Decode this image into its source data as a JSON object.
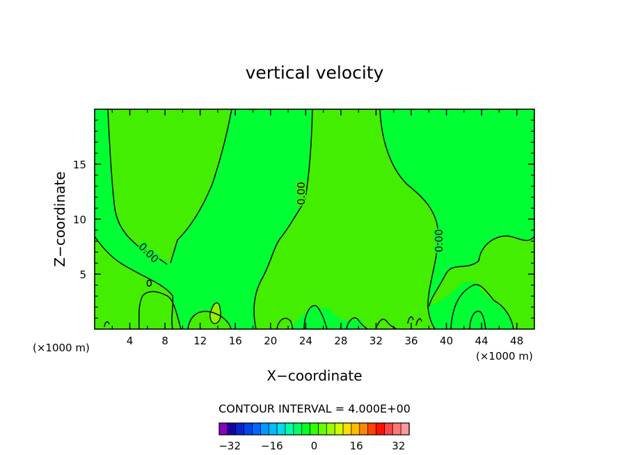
{
  "chart_data": {
    "type": "contour",
    "title": "vertical velocity",
    "xlabel": "X−coordinate",
    "ylabel": "Z−coordinate",
    "x_scale_note_left": "(×1000 m)",
    "x_scale_note_right": "(×1000 m)",
    "xlim": [
      0,
      50
    ],
    "ylim": [
      0,
      20
    ],
    "x_ticks": [
      4,
      8,
      12,
      16,
      20,
      24,
      28,
      32,
      36,
      40,
      44,
      48
    ],
    "y_ticks": [
      5,
      10,
      15
    ],
    "grid": false,
    "contour_interval_text": "CONTOUR INTERVAL = 4.000E+00",
    "contour_labels": [
      "0.00",
      "0.00",
      "0.00"
    ],
    "regions": [
      {
        "name": "negative-weak",
        "value_range": [
          -4,
          0
        ],
        "color": "#00ff33"
      },
      {
        "name": "positive-weak",
        "value_range": [
          0,
          4
        ],
        "color": "#44ee00"
      },
      {
        "name": "positive",
        "value_range": [
          4,
          8
        ],
        "color": "#99ee00"
      }
    ],
    "colorbar": {
      "colors": [
        "#8800bb",
        "#1800a0",
        "#0a22cc",
        "#0044ee",
        "#0066ff",
        "#0099ff",
        "#00bbff",
        "#00ddee",
        "#00ffaa",
        "#00ff66",
        "#00ff22",
        "#33ff00",
        "#66ff00",
        "#99ff00",
        "#ccff00",
        "#ffdd00",
        "#ffbb00",
        "#ff8800",
        "#ff4400",
        "#ff1100",
        "#ff4444",
        "#ff7777",
        "#ff9999"
      ],
      "tick_labels": [
        "−32",
        "−16",
        "0",
        "16",
        "32"
      ],
      "tick_values": [
        -32,
        -16,
        0,
        16,
        32
      ],
      "vmin": -36,
      "vmax": 36
    }
  }
}
